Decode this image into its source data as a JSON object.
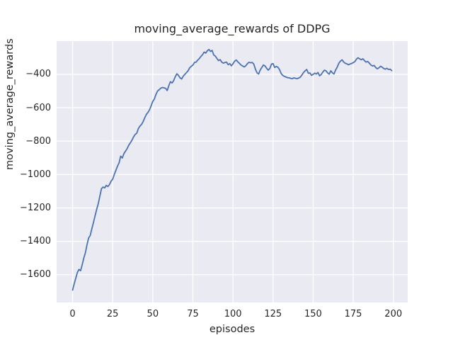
{
  "figure": {
    "background": "#ffffff",
    "text_color": "#262626"
  },
  "chart_data": {
    "type": "line",
    "title": "moving_average_rewards of DDPG",
    "xlabel": "episodes",
    "ylabel": "moving_average_rewards",
    "legend": null,
    "grid": true,
    "plot_bg_color": "#EAEAF2",
    "grid_color": "#FFFFFF",
    "line_color": "#4C72B0",
    "xlim": [
      -9.95,
      208.95
    ],
    "ylim": [
      -1766,
      -201
    ],
    "xticks": [
      {
        "value": 0,
        "label": "0"
      },
      {
        "value": 25,
        "label": "25"
      },
      {
        "value": 50,
        "label": "50"
      },
      {
        "value": 75,
        "label": "75"
      },
      {
        "value": 100,
        "label": "100"
      },
      {
        "value": 125,
        "label": "125"
      },
      {
        "value": 150,
        "label": "150"
      },
      {
        "value": 175,
        "label": "175"
      },
      {
        "value": 200,
        "label": "200"
      }
    ],
    "yticks": [
      {
        "value": -400,
        "label": "−400"
      },
      {
        "value": -600,
        "label": "−600"
      },
      {
        "value": -800,
        "label": "−800"
      },
      {
        "value": -1000,
        "label": "−1000"
      },
      {
        "value": -1200,
        "label": "−1200"
      },
      {
        "value": -1400,
        "label": "−1400"
      },
      {
        "value": -1600,
        "label": "−1600"
      }
    ],
    "x_start": 0,
    "x_step": 1,
    "values": [
      -1692,
      -1655,
      -1620,
      -1586,
      -1568,
      -1576,
      -1540,
      -1500,
      -1468,
      -1420,
      -1380,
      -1365,
      -1325,
      -1288,
      -1248,
      -1210,
      -1175,
      -1130,
      -1085,
      -1075,
      -1080,
      -1065,
      -1072,
      -1060,
      -1040,
      -1028,
      -1000,
      -975,
      -950,
      -930,
      -890,
      -901,
      -875,
      -860,
      -845,
      -825,
      -810,
      -795,
      -775,
      -760,
      -753,
      -725,
      -710,
      -700,
      -683,
      -660,
      -640,
      -628,
      -612,
      -588,
      -562,
      -548,
      -520,
      -500,
      -492,
      -483,
      -479,
      -481,
      -484,
      -497,
      -468,
      -444,
      -452,
      -438,
      -415,
      -397,
      -406,
      -421,
      -428,
      -411,
      -400,
      -390,
      -379,
      -361,
      -352,
      -345,
      -329,
      -327,
      -315,
      -306,
      -293,
      -283,
      -267,
      -273,
      -259,
      -251,
      -263,
      -257,
      -284,
      -291,
      -305,
      -318,
      -312,
      -327,
      -333,
      -329,
      -327,
      -342,
      -336,
      -349,
      -337,
      -322,
      -314,
      -325,
      -334,
      -344,
      -350,
      -356,
      -349,
      -336,
      -328,
      -331,
      -329,
      -339,
      -369,
      -391,
      -398,
      -374,
      -359,
      -344,
      -350,
      -364,
      -375,
      -365,
      -339,
      -336,
      -359,
      -353,
      -357,
      -371,
      -394,
      -406,
      -412,
      -416,
      -420,
      -421,
      -424,
      -426,
      -421,
      -424,
      -426,
      -422,
      -417,
      -404,
      -389,
      -379,
      -371,
      -394,
      -392,
      -406,
      -400,
      -393,
      -398,
      -389,
      -409,
      -401,
      -387,
      -375,
      -379,
      -391,
      -399,
      -379,
      -391,
      -398,
      -374,
      -357,
      -334,
      -321,
      -313,
      -326,
      -334,
      -337,
      -343,
      -338,
      -335,
      -330,
      -324,
      -309,
      -301,
      -307,
      -313,
      -307,
      -318,
      -327,
      -323,
      -333,
      -344,
      -350,
      -347,
      -359,
      -367,
      -361,
      -352,
      -357,
      -365,
      -369,
      -364,
      -371,
      -369,
      -378
    ]
  }
}
